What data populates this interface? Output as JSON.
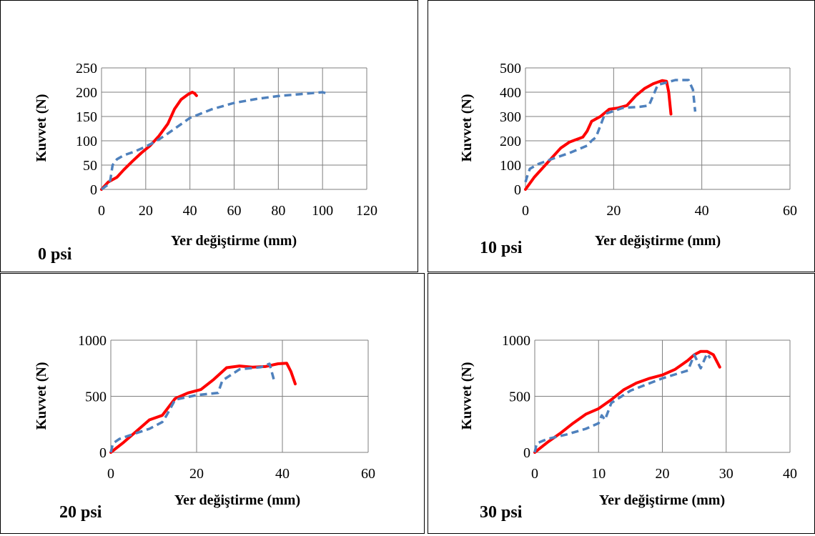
{
  "chart_data": [
    {
      "type": "line",
      "panel_label": "0 psi",
      "xlabel": "Yer değiştirme (mm)",
      "ylabel": "Kuvvet (N)",
      "xlim": [
        0,
        120
      ],
      "ylim": [
        0,
        250
      ],
      "xticks": [
        0,
        20,
        40,
        60,
        80,
        100,
        120
      ],
      "yticks": [
        0,
        50,
        100,
        150,
        200,
        250
      ],
      "grid": true,
      "series": [
        {
          "color": "#ff0000",
          "style": "solid",
          "x": [
            0,
            3,
            7,
            10,
            14,
            18,
            22,
            26,
            30,
            33,
            36,
            39,
            41,
            42,
            43
          ],
          "y": [
            0,
            15,
            25,
            40,
            58,
            75,
            90,
            110,
            135,
            165,
            185,
            195,
            200,
            198,
            193
          ]
        },
        {
          "color": "#4f81bd",
          "style": "dashed",
          "x": [
            0,
            3,
            4,
            5,
            7,
            10,
            15,
            20,
            25,
            30,
            40,
            50,
            60,
            70,
            80,
            90,
            100,
            103
          ],
          "y": [
            0,
            10,
            20,
            50,
            62,
            70,
            78,
            88,
            100,
            115,
            147,
            165,
            178,
            186,
            192,
            196,
            200,
            196
          ]
        }
      ]
    },
    {
      "type": "line",
      "panel_label": "10 psi",
      "xlabel": "Yer değiştirme (mm)",
      "ylabel": "Kuvvet (N)",
      "xlim": [
        0,
        60
      ],
      "ylim": [
        0,
        500
      ],
      "xticks": [
        0,
        20,
        40,
        60
      ],
      "yticks": [
        0,
        100,
        200,
        300,
        400,
        500
      ],
      "grid": true,
      "series": [
        {
          "color": "#ff0000",
          "style": "solid",
          "x": [
            0,
            2,
            5,
            8,
            10,
            13,
            14,
            15,
            17,
            19,
            21,
            23,
            25,
            27,
            29,
            31,
            32,
            32.5,
            33
          ],
          "y": [
            0,
            50,
            110,
            170,
            195,
            215,
            240,
            280,
            300,
            330,
            335,
            345,
            385,
            415,
            435,
            448,
            445,
            400,
            310
          ]
        },
        {
          "color": "#4f81bd",
          "style": "dashed",
          "x": [
            0,
            0.5,
            1,
            3,
            6,
            10,
            14,
            15,
            16,
            18,
            22,
            26,
            28,
            30,
            34,
            37,
            38,
            38.5
          ],
          "y": [
            30,
            60,
            85,
            105,
            125,
            150,
            180,
            200,
            215,
            310,
            335,
            340,
            345,
            430,
            450,
            450,
            410,
            320
          ]
        }
      ]
    },
    {
      "type": "line",
      "panel_label": "20 psi",
      "xlabel": "Yer değiştirme (mm)",
      "ylabel": "Kuvvet (N)",
      "xlim": [
        0,
        60
      ],
      "ylim": [
        0,
        1000
      ],
      "xticks": [
        0,
        20,
        40,
        60
      ],
      "yticks": [
        0,
        500,
        1000
      ],
      "grid": true,
      "series": [
        {
          "color": "#ff0000",
          "style": "solid",
          "x": [
            0,
            3,
            6,
            9,
            12,
            15,
            18,
            21,
            24,
            27,
            30,
            33,
            36,
            39,
            41,
            42,
            43
          ],
          "y": [
            0,
            90,
            190,
            290,
            330,
            480,
            530,
            560,
            650,
            755,
            770,
            760,
            765,
            790,
            795,
            720,
            610
          ]
        },
        {
          "color": "#4f81bd",
          "style": "dashed",
          "x": [
            0,
            0.5,
            2,
            5,
            9,
            12,
            13,
            15,
            20,
            25,
            26,
            30,
            35,
            37,
            38
          ],
          "y": [
            0,
            80,
            120,
            160,
            210,
            270,
            330,
            470,
            510,
            530,
            640,
            740,
            760,
            790,
            650
          ]
        }
      ]
    },
    {
      "type": "line",
      "panel_label": "30 psi",
      "xlabel": "Yer değiştirme (mm)",
      "ylabel": "Kuvvet (N)",
      "xlim": [
        0,
        40
      ],
      "ylim": [
        0,
        1000
      ],
      "xticks": [
        0,
        10,
        20,
        30,
        40
      ],
      "yticks": [
        0,
        500,
        1000
      ],
      "grid": true,
      "series": [
        {
          "color": "#ff0000",
          "style": "solid",
          "x": [
            0,
            2,
            4,
            6,
            8,
            10,
            12,
            14,
            16,
            18,
            20,
            22,
            24,
            25,
            26,
            27,
            28,
            29
          ],
          "y": [
            0,
            90,
            170,
            260,
            340,
            390,
            470,
            560,
            620,
            660,
            690,
            740,
            820,
            870,
            900,
            900,
            870,
            760
          ]
        },
        {
          "color": "#4f81bd",
          "style": "dashed",
          "x": [
            0,
            0.3,
            2,
            5,
            8,
            10,
            10.5,
            11,
            12,
            15,
            20,
            24,
            25,
            26,
            27,
            27.5
          ],
          "y": [
            0,
            80,
            120,
            160,
            210,
            260,
            330,
            290,
            440,
            550,
            660,
            730,
            870,
            750,
            880,
            840
          ]
        }
      ]
    }
  ]
}
